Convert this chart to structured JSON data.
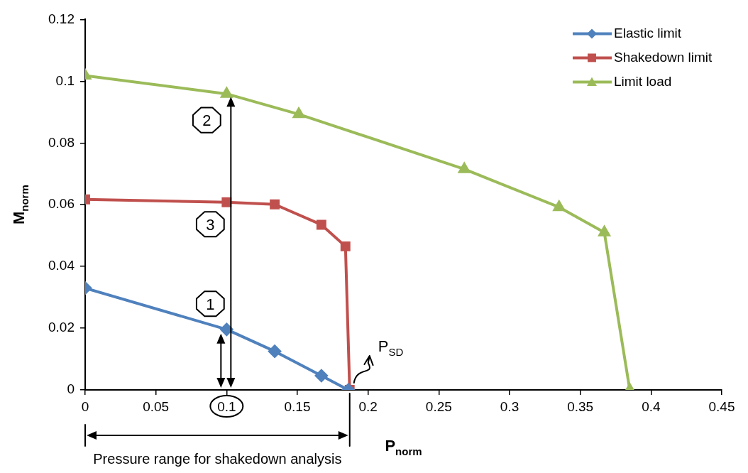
{
  "chart_data": {
    "type": "line",
    "xlabel": "P$_{norm}$",
    "ylabel": "M$_{norm}$",
    "xlim": [
      0,
      0.45
    ],
    "xticks": [
      0,
      0.05,
      0.1,
      0.15,
      0.2,
      0.25,
      0.3,
      0.35,
      0.4,
      0.45
    ],
    "ylim": [
      0,
      0.12
    ],
    "yticks": [
      0,
      0.02,
      0.04,
      0.06,
      0.08,
      0.1,
      0.12
    ],
    "grid": false,
    "legend": "top right",
    "series": [
      {
        "name": "Elastic limit",
        "color": "#4f81bd",
        "marker": "diamond",
        "x": [
          0,
          0.1,
          0.134,
          0.167,
          0.186
        ],
        "values": [
          0.033,
          0.0196,
          0.0125,
          0.0046,
          0
        ]
      },
      {
        "name": "Shakedown limit",
        "color": "#c0504d",
        "marker": "square",
        "x": [
          0,
          0.1,
          0.134,
          0.167,
          0.184,
          0.187
        ],
        "values": [
          0.0617,
          0.0608,
          0.0601,
          0.0535,
          0.0465,
          0
        ]
      },
      {
        "name": "Limit load",
        "color": "#9bbb59",
        "marker": "triangle",
        "x": [
          0,
          0.1,
          0.151,
          0.268,
          0.335,
          0.367,
          0.385
        ],
        "values": [
          0.1018,
          0.0959,
          0.0893,
          0.0715,
          0.0592,
          0.051,
          0
        ]
      }
    ],
    "annotations": [
      "1",
      "2",
      "3",
      "P$_{SD}$",
      "Pressure range for shakedown analysis"
    ]
  }
}
